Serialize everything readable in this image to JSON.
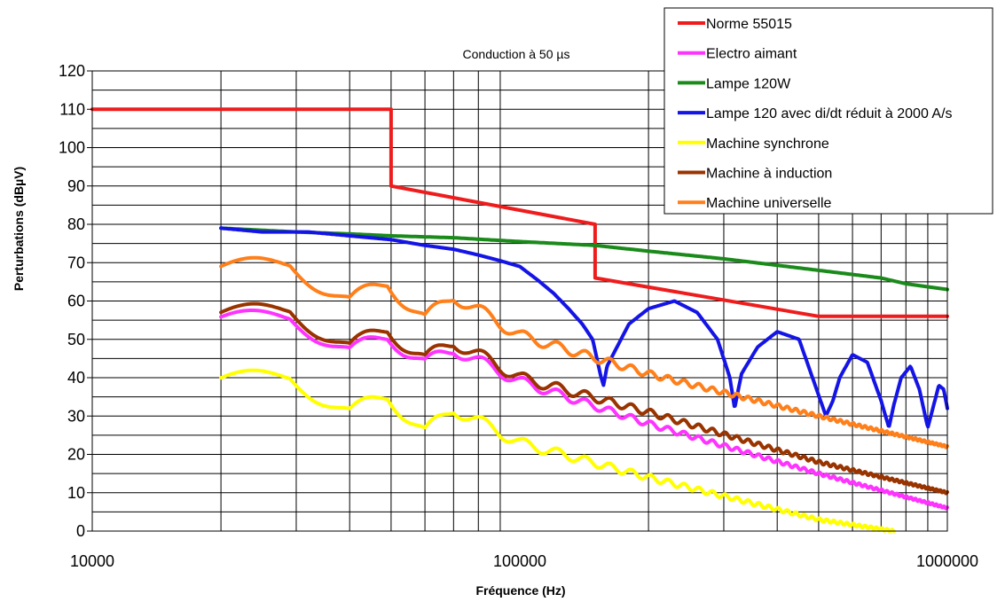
{
  "chart_data": {
    "type": "line",
    "title": "Conduction à 50 µs",
    "xlabel": "Fréquence (Hz)",
    "ylabel": "Perturbations (dBµV)",
    "xscale": "log",
    "xlim": [
      10000,
      1000000
    ],
    "ylim": [
      0,
      120
    ],
    "x_ticks": [
      10000,
      100000,
      1000000
    ],
    "x_tick_labels": [
      "10000",
      "100000",
      "1000000"
    ],
    "y_ticks": [
      0,
      10,
      20,
      30,
      40,
      50,
      60,
      70,
      80,
      90,
      100,
      110,
      120
    ],
    "y_tick_labels": [
      "0",
      "10",
      "20",
      "30",
      "40",
      "50",
      "60",
      "70",
      "80",
      "90",
      "100",
      "110",
      "120"
    ],
    "grid": true,
    "legend_position": "top-right",
    "series": [
      {
        "name": "Norme 55015",
        "color": "#ee1c1c",
        "kind": "limit",
        "x": [
          10000,
          50000,
          50000,
          150000,
          150000,
          500000,
          1000000
        ],
        "y": [
          110,
          110,
          90,
          80,
          66,
          56,
          56
        ]
      },
      {
        "name": "Electro aimant",
        "color": "#ff33ff",
        "kind": "oscillating",
        "x": [
          20000,
          29000,
          40000,
          49000,
          60000,
          70000,
          100000,
          200000,
          500000,
          1000000
        ],
        "y": [
          54,
          56.5,
          46,
          51,
          43.5,
          47.5,
          39,
          28,
          15,
          6
        ]
      },
      {
        "name": "Lampe 120W",
        "color": "#1a8a1a",
        "kind": "smooth",
        "x": [
          20000,
          30000,
          40000,
          50000,
          70000,
          100000,
          150000,
          200000,
          300000,
          500000,
          700000,
          800000,
          1000000
        ],
        "y": [
          79,
          78,
          77.5,
          77,
          76.5,
          75.5,
          74.5,
          73,
          71,
          68,
          66,
          64.5,
          63
        ]
      },
      {
        "name": "Lampe 120 avec di/dt réduit à 2000 A/s",
        "color": "#1414e6",
        "kind": "smooth",
        "x": [
          20000,
          25000,
          32000,
          40000,
          50000,
          60000,
          70000,
          80000,
          90000,
          100000,
          110000,
          120000,
          130000,
          140000,
          148000,
          155000,
          157000,
          160000,
          180000,
          200000,
          230000,
          260000,
          290000,
          310000,
          318000,
          330000,
          360000,
          400000,
          450000,
          520000,
          540000,
          560000,
          600000,
          650000,
          700000,
          730000,
          750000,
          780000,
          820000,
          860000,
          900000,
          930000,
          955000,
          980000,
          1000000
        ],
        "y": [
          79,
          78,
          78,
          77,
          76,
          74.5,
          73.5,
          72,
          70.5,
          69,
          65.5,
          62,
          58,
          54,
          50,
          40,
          38,
          43,
          54,
          58,
          60,
          57,
          50,
          40,
          32,
          41,
          48,
          52,
          50,
          30,
          34,
          40,
          46,
          44,
          34,
          27,
          33,
          40,
          43,
          37,
          27,
          33,
          38,
          37,
          32
        ]
      },
      {
        "name": "Machine synchrone",
        "color": "#ffff00",
        "kind": "oscillating",
        "x": [
          20000,
          29000,
          40000,
          49000,
          60000,
          70000,
          100000,
          200000,
          500000,
          750000
        ],
        "y": [
          38,
          41,
          30,
          35.5,
          25.5,
          32,
          23,
          14,
          3,
          0
        ]
      },
      {
        "name": "Machine à induction",
        "color": "#993300",
        "kind": "oscillating",
        "x": [
          20000,
          29000,
          40000,
          49000,
          60000,
          70000,
          100000,
          200000,
          500000,
          1000000
        ],
        "y": [
          55,
          58.5,
          47,
          53,
          44.5,
          49.5,
          40,
          31,
          18,
          10
        ]
      },
      {
        "name": "Machine universelle",
        "color": "#ff7f1a",
        "kind": "oscillating",
        "x": [
          20000,
          29000,
          40000,
          49000,
          60000,
          70000,
          100000,
          200000,
          500000,
          1000000
        ],
        "y": [
          67,
          70.5,
          59,
          65,
          55,
          61.5,
          51,
          41,
          30,
          22
        ]
      }
    ]
  }
}
